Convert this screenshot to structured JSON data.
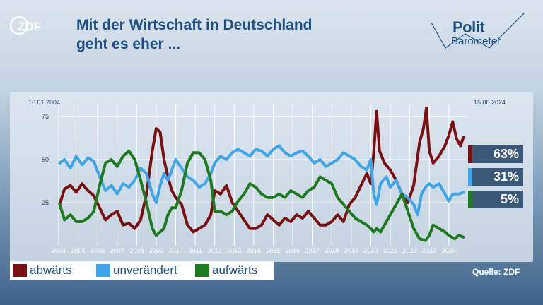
{
  "header": {
    "title_line1": "Mit der Wirtschaft in Deutschland",
    "title_line2": "geht es eher ...",
    "logo_left": "ZDF",
    "logo_right_line1": "Polit",
    "logo_right_line2": "Barometer"
  },
  "chart_data": {
    "type": "line",
    "date_start": "16.01.2004",
    "date_end": "15.08.2024",
    "x_tick_labels": [
      "2004",
      "2005",
      "2006",
      "2007",
      "2008",
      "2009",
      "2010",
      "2011",
      "2012",
      "2013",
      "2014",
      "2015",
      "2016",
      "2017",
      "2018",
      "2019",
      "2020",
      "2021",
      "2022",
      "2023",
      "2024"
    ],
    "y_tick_labels": [
      "25",
      "50",
      "75"
    ],
    "ylim": [
      0,
      82
    ],
    "grid": true,
    "series": [
      {
        "name": "abwärts",
        "color": "#7a1010",
        "final_label": "63%",
        "points": [
          [
            2004.05,
            24
          ],
          [
            2004.3,
            33
          ],
          [
            2004.6,
            35
          ],
          [
            2004.9,
            31
          ],
          [
            2005.2,
            36
          ],
          [
            2005.5,
            32
          ],
          [
            2005.8,
            29
          ],
          [
            2006.1,
            22
          ],
          [
            2006.4,
            15
          ],
          [
            2006.7,
            18
          ],
          [
            2007.0,
            20
          ],
          [
            2007.3,
            12
          ],
          [
            2007.6,
            13
          ],
          [
            2007.9,
            10
          ],
          [
            2008.2,
            15
          ],
          [
            2008.5,
            30
          ],
          [
            2008.8,
            55
          ],
          [
            2009.0,
            68
          ],
          [
            2009.2,
            66
          ],
          [
            2009.4,
            50
          ],
          [
            2009.6,
            40
          ],
          [
            2009.8,
            32
          ],
          [
            2010.0,
            28
          ],
          [
            2010.3,
            24
          ],
          [
            2010.6,
            12
          ],
          [
            2010.9,
            8
          ],
          [
            2011.2,
            10
          ],
          [
            2011.5,
            12
          ],
          [
            2011.8,
            18
          ],
          [
            2012.0,
            32
          ],
          [
            2012.3,
            30
          ],
          [
            2012.6,
            35
          ],
          [
            2012.9,
            25
          ],
          [
            2013.2,
            20
          ],
          [
            2013.5,
            15
          ],
          [
            2013.8,
            10
          ],
          [
            2014.1,
            10
          ],
          [
            2014.4,
            12
          ],
          [
            2014.7,
            18
          ],
          [
            2015.0,
            15
          ],
          [
            2015.3,
            12
          ],
          [
            2015.6,
            16
          ],
          [
            2015.9,
            14
          ],
          [
            2016.2,
            18
          ],
          [
            2016.5,
            16
          ],
          [
            2016.8,
            20
          ],
          [
            2017.1,
            16
          ],
          [
            2017.4,
            12
          ],
          [
            2017.7,
            12
          ],
          [
            2018.0,
            14
          ],
          [
            2018.3,
            18
          ],
          [
            2018.6,
            14
          ],
          [
            2018.9,
            24
          ],
          [
            2019.2,
            28
          ],
          [
            2019.5,
            35
          ],
          [
            2019.8,
            42
          ],
          [
            2020.0,
            36
          ],
          [
            2020.15,
            54
          ],
          [
            2020.3,
            78
          ],
          [
            2020.45,
            55
          ],
          [
            2020.7,
            48
          ],
          [
            2021.0,
            44
          ],
          [
            2021.3,
            38
          ],
          [
            2021.6,
            30
          ],
          [
            2021.9,
            25
          ],
          [
            2022.2,
            35
          ],
          [
            2022.5,
            60
          ],
          [
            2022.7,
            68
          ],
          [
            2022.85,
            80
          ],
          [
            2023.0,
            55
          ],
          [
            2023.2,
            48
          ],
          [
            2023.5,
            52
          ],
          [
            2023.8,
            58
          ],
          [
            2024.0,
            64
          ],
          [
            2024.2,
            72
          ],
          [
            2024.4,
            62
          ],
          [
            2024.6,
            58
          ],
          [
            2024.75,
            63
          ]
        ]
      },
      {
        "name": "unverändert",
        "color": "#3ea6e8",
        "final_label": "31%",
        "points": [
          [
            2004.05,
            48
          ],
          [
            2004.3,
            50
          ],
          [
            2004.6,
            45
          ],
          [
            2004.9,
            52
          ],
          [
            2005.2,
            47
          ],
          [
            2005.5,
            51
          ],
          [
            2005.8,
            49
          ],
          [
            2006.1,
            40
          ],
          [
            2006.4,
            32
          ],
          [
            2006.7,
            35
          ],
          [
            2007.0,
            30
          ],
          [
            2007.3,
            36
          ],
          [
            2007.6,
            34
          ],
          [
            2007.9,
            38
          ],
          [
            2008.2,
            45
          ],
          [
            2008.5,
            42
          ],
          [
            2008.8,
            30
          ],
          [
            2009.0,
            25
          ],
          [
            2009.2,
            35
          ],
          [
            2009.4,
            42
          ],
          [
            2009.6,
            38
          ],
          [
            2009.8,
            44
          ],
          [
            2010.0,
            50
          ],
          [
            2010.3,
            45
          ],
          [
            2010.6,
            40
          ],
          [
            2010.9,
            38
          ],
          [
            2011.2,
            34
          ],
          [
            2011.5,
            36
          ],
          [
            2011.8,
            42
          ],
          [
            2012.0,
            48
          ],
          [
            2012.3,
            52
          ],
          [
            2012.6,
            50
          ],
          [
            2012.9,
            54
          ],
          [
            2013.2,
            56
          ],
          [
            2013.5,
            54
          ],
          [
            2013.8,
            52
          ],
          [
            2014.1,
            56
          ],
          [
            2014.4,
            55
          ],
          [
            2014.7,
            52
          ],
          [
            2015.0,
            56
          ],
          [
            2015.3,
            58
          ],
          [
            2015.6,
            54
          ],
          [
            2015.9,
            52
          ],
          [
            2016.2,
            54
          ],
          [
            2016.5,
            55
          ],
          [
            2016.8,
            52
          ],
          [
            2017.1,
            48
          ],
          [
            2017.4,
            50
          ],
          [
            2017.7,
            46
          ],
          [
            2018.0,
            48
          ],
          [
            2018.3,
            50
          ],
          [
            2018.6,
            54
          ],
          [
            2018.9,
            52
          ],
          [
            2019.2,
            50
          ],
          [
            2019.5,
            46
          ],
          [
            2019.8,
            44
          ],
          [
            2020.0,
            50
          ],
          [
            2020.15,
            30
          ],
          [
            2020.3,
            24
          ],
          [
            2020.5,
            36
          ],
          [
            2020.8,
            40
          ],
          [
            2021.0,
            34
          ],
          [
            2021.3,
            38
          ],
          [
            2021.6,
            30
          ],
          [
            2021.9,
            28
          ],
          [
            2022.2,
            24
          ],
          [
            2022.4,
            18
          ],
          [
            2022.6,
            30
          ],
          [
            2022.8,
            34
          ],
          [
            2023.0,
            36
          ],
          [
            2023.2,
            34
          ],
          [
            2023.5,
            36
          ],
          [
            2023.8,
            30
          ],
          [
            2024.0,
            26
          ],
          [
            2024.2,
            30
          ],
          [
            2024.5,
            30
          ],
          [
            2024.75,
            31
          ]
        ]
      },
      {
        "name": "aufwärts",
        "color": "#1e7a1e",
        "final_label": "5%",
        "points": [
          [
            2004.05,
            24
          ],
          [
            2004.3,
            15
          ],
          [
            2004.6,
            18
          ],
          [
            2004.9,
            14
          ],
          [
            2005.2,
            14
          ],
          [
            2005.5,
            16
          ],
          [
            2005.8,
            20
          ],
          [
            2006.1,
            35
          ],
          [
            2006.4,
            48
          ],
          [
            2006.7,
            50
          ],
          [
            2007.0,
            46
          ],
          [
            2007.3,
            52
          ],
          [
            2007.6,
            55
          ],
          [
            2007.9,
            50
          ],
          [
            2008.2,
            38
          ],
          [
            2008.5,
            25
          ],
          [
            2008.8,
            10
          ],
          [
            2009.0,
            6
          ],
          [
            2009.2,
            8
          ],
          [
            2009.4,
            10
          ],
          [
            2009.6,
            18
          ],
          [
            2009.8,
            22
          ],
          [
            2010.0,
            22
          ],
          [
            2010.3,
            32
          ],
          [
            2010.6,
            48
          ],
          [
            2010.9,
            54
          ],
          [
            2011.2,
            54
          ],
          [
            2011.5,
            50
          ],
          [
            2011.8,
            38
          ],
          [
            2012.0,
            20
          ],
          [
            2012.3,
            20
          ],
          [
            2012.6,
            18
          ],
          [
            2012.9,
            20
          ],
          [
            2013.2,
            26
          ],
          [
            2013.5,
            30
          ],
          [
            2013.8,
            36
          ],
          [
            2014.1,
            34
          ],
          [
            2014.4,
            30
          ],
          [
            2014.7,
            28
          ],
          [
            2015.0,
            28
          ],
          [
            2015.3,
            30
          ],
          [
            2015.6,
            28
          ],
          [
            2015.9,
            32
          ],
          [
            2016.2,
            30
          ],
          [
            2016.5,
            28
          ],
          [
            2016.8,
            32
          ],
          [
            2017.1,
            34
          ],
          [
            2017.4,
            40
          ],
          [
            2017.7,
            38
          ],
          [
            2018.0,
            36
          ],
          [
            2018.3,
            28
          ],
          [
            2018.6,
            24
          ],
          [
            2018.9,
            20
          ],
          [
            2019.2,
            16
          ],
          [
            2019.5,
            14
          ],
          [
            2019.8,
            12
          ],
          [
            2020.0,
            10
          ],
          [
            2020.15,
            8
          ],
          [
            2020.3,
            10
          ],
          [
            2020.5,
            8
          ],
          [
            2020.8,
            14
          ],
          [
            2021.0,
            18
          ],
          [
            2021.3,
            24
          ],
          [
            2021.6,
            30
          ],
          [
            2021.9,
            20
          ],
          [
            2022.2,
            10
          ],
          [
            2022.5,
            4
          ],
          [
            2022.8,
            3
          ],
          [
            2023.0,
            6
          ],
          [
            2023.2,
            12
          ],
          [
            2023.5,
            10
          ],
          [
            2023.8,
            8
          ],
          [
            2024.0,
            6
          ],
          [
            2024.3,
            4
          ],
          [
            2024.5,
            6
          ],
          [
            2024.75,
            5
          ]
        ]
      }
    ]
  },
  "legend": {
    "items": [
      {
        "label": "abwärts",
        "color": "#7a1010"
      },
      {
        "label": "unverändert",
        "color": "#3ea6e8"
      },
      {
        "label": "aufwärts",
        "color": "#1e7a1e"
      }
    ]
  },
  "source": "Quelle: ZDF"
}
